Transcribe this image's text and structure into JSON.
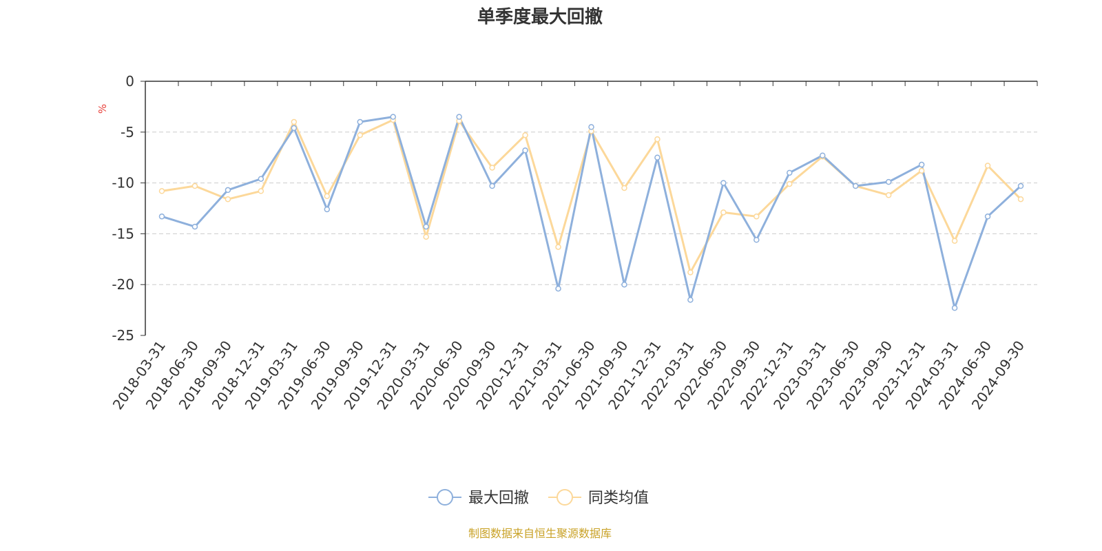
{
  "chart_data": {
    "type": "line",
    "title": "单季度最大回撤",
    "ylabel": "%",
    "ylim": [
      -25,
      0
    ],
    "yticks": [
      0,
      -5,
      -10,
      -15,
      -20,
      -25
    ],
    "ytick_labels": [
      "0",
      "-5",
      "-10",
      "-15",
      "-20",
      "-25"
    ],
    "grid": true,
    "legend_position": "bottom-center",
    "categories": [
      "2018-03-31",
      "2018-06-30",
      "2018-09-30",
      "2018-12-31",
      "2019-03-31",
      "2019-06-30",
      "2019-09-30",
      "2019-12-31",
      "2020-03-31",
      "2020-06-30",
      "2020-09-30",
      "2020-12-31",
      "2021-03-31",
      "2021-06-30",
      "2021-09-30",
      "2021-12-31",
      "2022-03-31",
      "2022-06-30",
      "2022-09-30",
      "2022-12-31",
      "2023-03-31",
      "2023-06-30",
      "2023-09-30",
      "2023-12-31",
      "2024-03-31",
      "2024-06-30",
      "2024-09-30"
    ],
    "series": [
      {
        "name": "最大回撤",
        "color": "#8eb0dc",
        "values": [
          -13.3,
          -14.3,
          -10.7,
          -9.6,
          -4.6,
          -12.6,
          -4.0,
          -3.5,
          -14.3,
          -3.5,
          -10.3,
          -6.8,
          -20.4,
          -4.5,
          -20.0,
          -7.5,
          -21.5,
          -10.0,
          -15.6,
          -9.0,
          -7.3,
          -10.3,
          -9.9,
          -8.2,
          -22.3,
          -13.3,
          -10.3
        ]
      },
      {
        "name": "同类均值",
        "color": "#fcd89a",
        "values": [
          -10.8,
          -10.3,
          -11.6,
          -10.8,
          -4.0,
          -11.3,
          -5.3,
          -3.8,
          -15.3,
          -3.9,
          -8.5,
          -5.3,
          -16.3,
          -4.9,
          -10.5,
          -5.7,
          -18.8,
          -12.9,
          -13.3,
          -10.1,
          -7.4,
          -10.3,
          -11.2,
          -8.8,
          -15.7,
          -8.3,
          -11.6
        ]
      }
    ],
    "source": "制图数据来自恒生聚源数据库",
    "colors": {
      "title": "#333333",
      "axis": "#333333",
      "grid": "#cccccc",
      "unit": "#e8403a",
      "source": "#c9a227"
    }
  }
}
